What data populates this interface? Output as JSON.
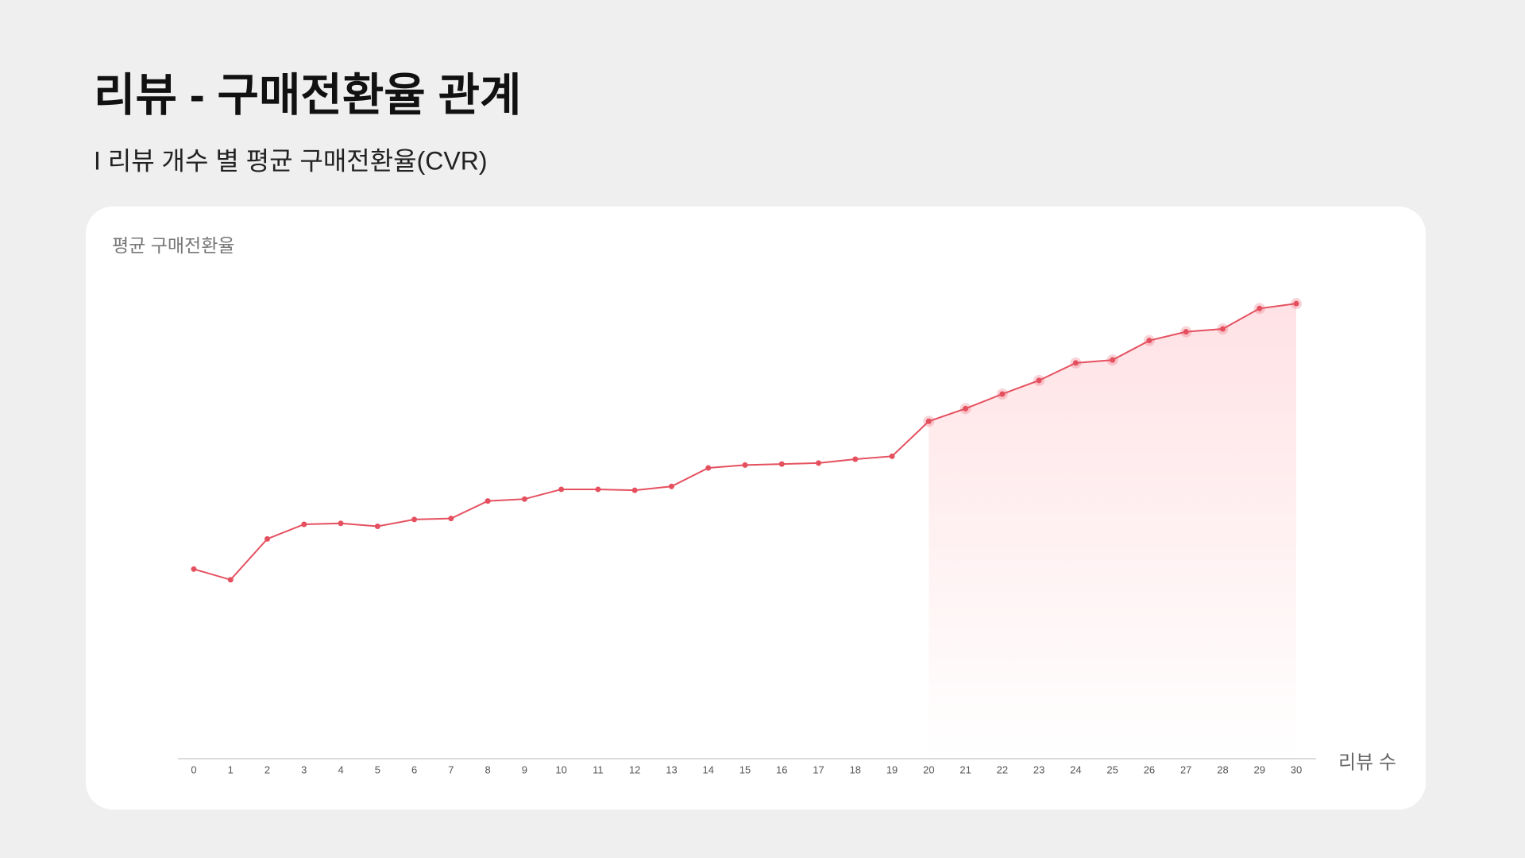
{
  "chart_data": {
    "type": "line",
    "title": "리뷰 - 구매전환율 관계",
    "subtitle": "I 리뷰 개수 별 평균 구매전환율(CVR)",
    "ylabel": "평균 구매전환율",
    "xlabel": "리뷰 수",
    "x": [
      0,
      1,
      2,
      3,
      4,
      5,
      6,
      7,
      8,
      9,
      10,
      11,
      12,
      13,
      14,
      15,
      16,
      17,
      18,
      19,
      20,
      21,
      22,
      23,
      24,
      25,
      26,
      27,
      28,
      29,
      30
    ],
    "series": [
      {
        "color": "#e5505f",
        "values": [
          39,
          36.8,
          45.2,
          48.2,
          48.4,
          47.8,
          49.2,
          49.4,
          53,
          53.4,
          55.4,
          55.4,
          55.2,
          56,
          59.8,
          60.4,
          60.6,
          60.8,
          61.6,
          62.2,
          69.4,
          72,
          75,
          77.8,
          81.4,
          82,
          86,
          87.8,
          88.4,
          92.6,
          93.6
        ]
      }
    ],
    "xlim": [
      0,
      30
    ],
    "ylim": [
      0,
      100
    ],
    "highlight_from": 20,
    "highlight_color": "#ff8a96"
  }
}
